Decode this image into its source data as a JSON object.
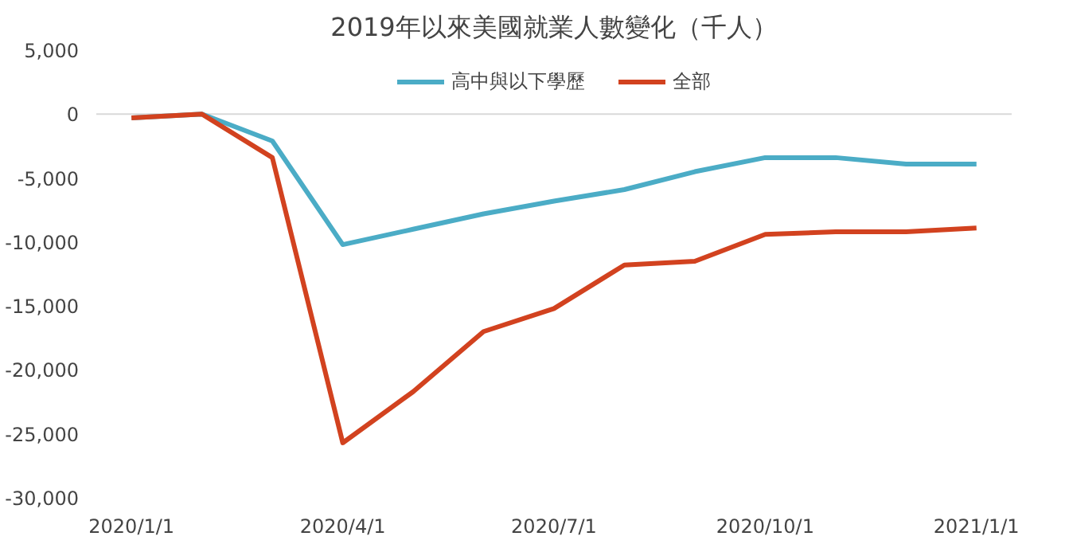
{
  "chart_data": {
    "type": "line",
    "title": "2019年以來美國就業人數變化（千人）",
    "categories": [
      "2020/1/1",
      null,
      null,
      "2020/4/1",
      null,
      null,
      "2020/7/1",
      null,
      null,
      "2020/10/1",
      null,
      null,
      "2021/1/1"
    ],
    "series": [
      {
        "name": "高中與以下學歷",
        "color": "#4bacc6",
        "values": [
          -300,
          0,
          -2100,
          -10200,
          -9000,
          -7800,
          -6800,
          -5900,
          -4500,
          -3400,
          -3400,
          -3900,
          -3900
        ]
      },
      {
        "name": "全部",
        "color": "#d2421f",
        "values": [
          -300,
          0,
          -3400,
          -25700,
          -21700,
          -17000,
          -15200,
          -11800,
          -11500,
          -9400,
          -9200,
          -9200,
          -8900
        ]
      }
    ],
    "ylim": [
      -30000,
      5000
    ],
    "yticks": [
      {
        "value": 5000,
        "label": "5,000"
      },
      {
        "value": 0,
        "label": "0"
      },
      {
        "value": -5000,
        "label": "-5,000"
      },
      {
        "value": -10000,
        "label": "-10,000"
      },
      {
        "value": -15000,
        "label": "-15,000"
      },
      {
        "value": -20000,
        "label": "-20,000"
      },
      {
        "value": -25000,
        "label": "-25,000"
      },
      {
        "value": -30000,
        "label": "-30,000"
      }
    ],
    "ref_lines": [
      {
        "axis": "y",
        "value": 0,
        "color": "#d9d9d9"
      }
    ],
    "grid": false,
    "legend": "top",
    "line_style": "solid",
    "marker": "none"
  }
}
